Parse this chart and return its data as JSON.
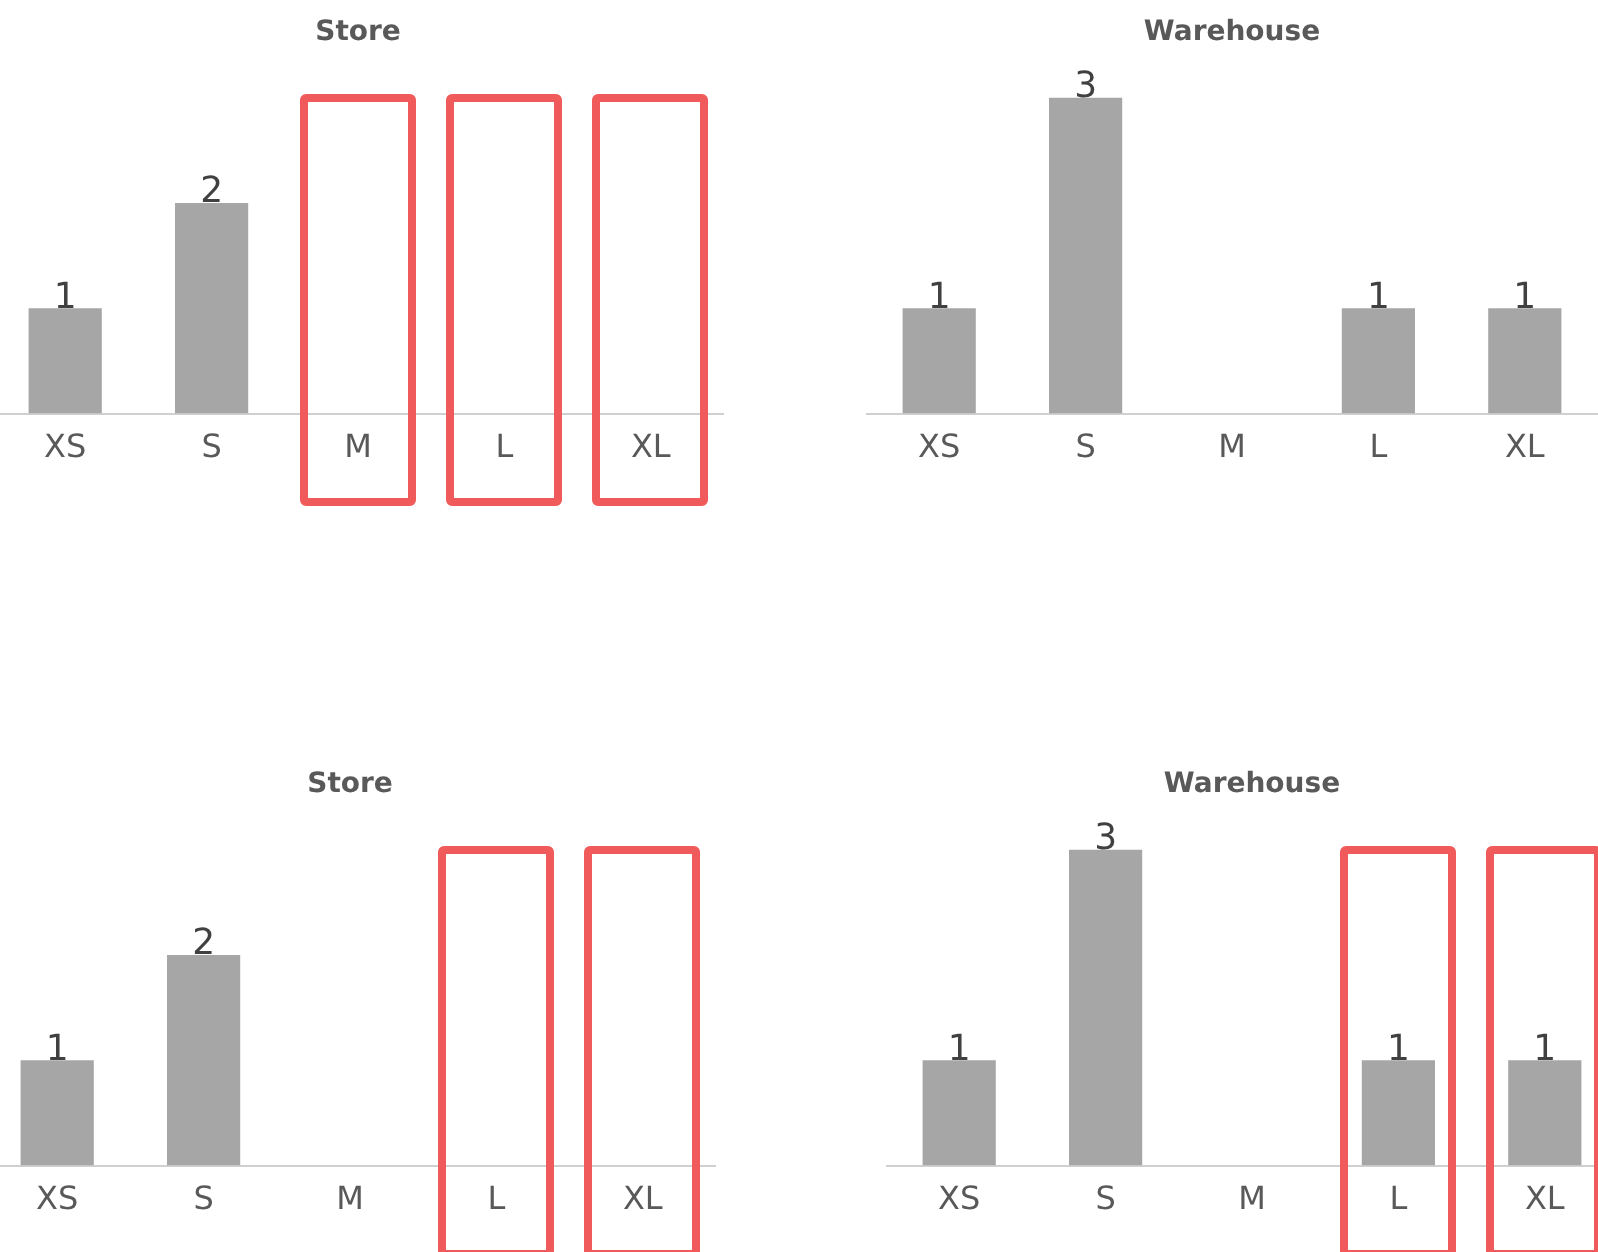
{
  "chart_data": [
    {
      "type": "bar",
      "title": "Store",
      "categories": [
        "XS",
        "S",
        "M",
        "L",
        "XL"
      ],
      "values": [
        1,
        2,
        null,
        null,
        null
      ],
      "color": "#a6a6a6",
      "data_labels": true,
      "grid": false,
      "legend": false,
      "tick_labels": "x"
    },
    {
      "type": "bar",
      "title": "Warehouse",
      "categories": [
        "XS",
        "S",
        "M",
        "L",
        "XL"
      ],
      "values": [
        1,
        3,
        null,
        1,
        1
      ],
      "color": "#a6a6a6",
      "data_labels": true,
      "grid": false,
      "legend": false,
      "tick_labels": "x"
    },
    {
      "type": "bar",
      "title": "Store",
      "categories": [
        "XS",
        "S",
        "M",
        "L",
        "XL"
      ],
      "values": [
        1,
        2,
        null,
        null,
        null
      ],
      "color": "#a6a6a6",
      "data_labels": true,
      "grid": false,
      "legend": false,
      "tick_labels": "x"
    },
    {
      "type": "bar",
      "title": "Warehouse",
      "categories": [
        "XS",
        "S",
        "M",
        "L",
        "XL"
      ],
      "values": [
        1,
        3,
        null,
        1,
        1
      ],
      "color": "#a6a6a6",
      "data_labels": true,
      "grid": false,
      "legend": false,
      "tick_labels": "x"
    }
  ]
}
